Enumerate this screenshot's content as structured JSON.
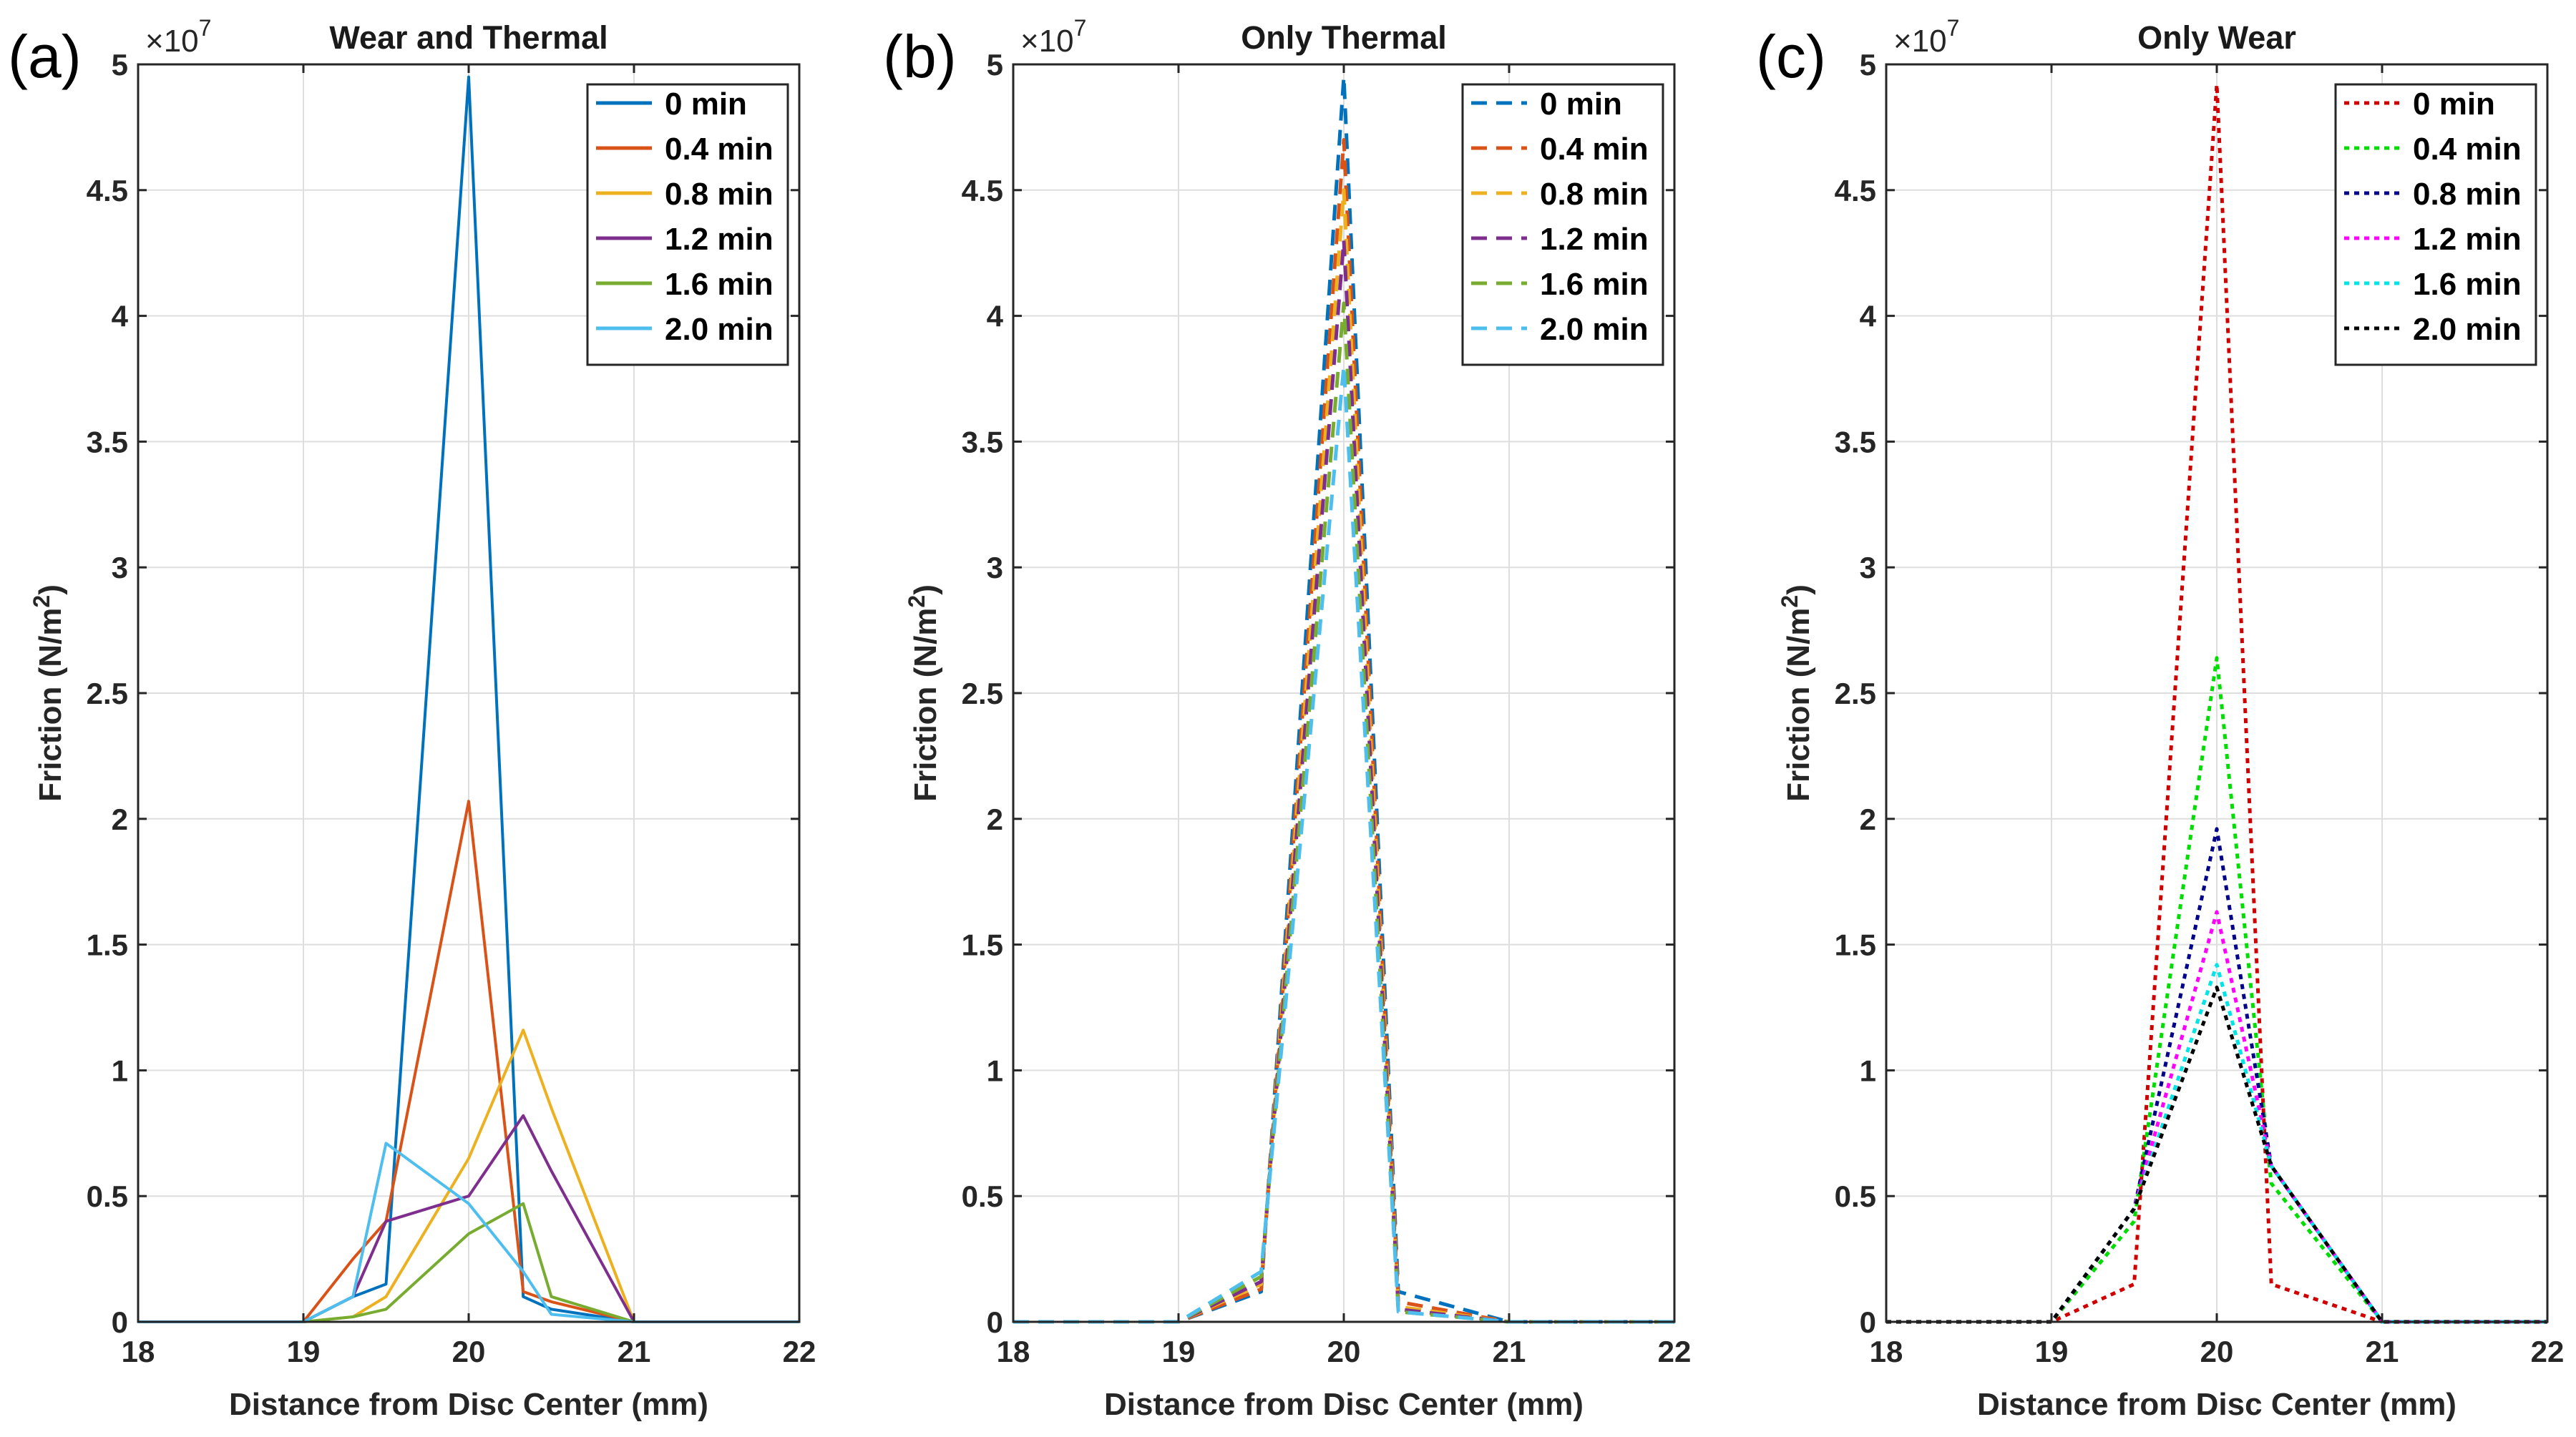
{
  "chart_data": [
    {
      "type": "line",
      "panel_label": "(a)",
      "title": "Wear and Thermal",
      "xlabel": "Distance from Disc Center (mm)",
      "ylabel_main": "Friction (N/m",
      "ylabel_sup": "2",
      "ylabel_end": ")",
      "multiplier_base": "×10",
      "multiplier_exp": "7",
      "xlim": [
        18,
        22
      ],
      "ylim": [
        0,
        5
      ],
      "xticks": [
        "18",
        "19",
        "20",
        "21",
        "22"
      ],
      "yticks": [
        "0",
        "0.5",
        "1",
        "1.5",
        "2",
        "2.5",
        "3",
        "3.5",
        "4",
        "4.5",
        "5"
      ],
      "legend_position": "top-right",
      "line_style": "solid",
      "series": [
        {
          "name": "0 min",
          "color": "#0072BD",
          "x": [
            18,
            19,
            19.3,
            19.5,
            20,
            20.33,
            20.5,
            21,
            22
          ],
          "y": [
            0,
            0,
            0.1,
            0.15,
            4.95,
            0.1,
            0.05,
            0,
            0
          ]
        },
        {
          "name": "0.4 min",
          "color": "#D95319",
          "x": [
            18,
            19,
            19.3,
            19.5,
            20,
            20.33,
            20.5,
            21,
            22
          ],
          "y": [
            0,
            0,
            0.25,
            0.4,
            2.07,
            0.12,
            0.08,
            0,
            0
          ]
        },
        {
          "name": "0.8 min",
          "color": "#EDB120",
          "x": [
            18,
            19,
            19.3,
            19.5,
            20,
            20.33,
            20.5,
            21,
            22
          ],
          "y": [
            0,
            0,
            0.02,
            0.1,
            0.65,
            1.16,
            0.85,
            0,
            0
          ]
        },
        {
          "name": "1.2 min",
          "color": "#7E2F8E",
          "x": [
            18,
            19,
            19.3,
            19.5,
            20,
            20.33,
            20.5,
            21,
            22
          ],
          "y": [
            0,
            0,
            0.1,
            0.4,
            0.5,
            0.82,
            0.6,
            0,
            0
          ]
        },
        {
          "name": "1.6 min",
          "color": "#77AC30",
          "x": [
            18,
            19,
            19.3,
            19.5,
            20,
            20.33,
            20.5,
            21,
            22
          ],
          "y": [
            0,
            0,
            0.02,
            0.05,
            0.35,
            0.47,
            0.1,
            0,
            0
          ]
        },
        {
          "name": "2.0 min",
          "color": "#4DBEEE",
          "x": [
            18,
            19,
            19.3,
            19.5,
            20,
            20.33,
            20.5,
            21,
            22
          ],
          "y": [
            0,
            0,
            0.1,
            0.71,
            0.47,
            0.2,
            0.03,
            0,
            0
          ]
        }
      ]
    },
    {
      "type": "line",
      "panel_label": "(b)",
      "title": "Only Thermal",
      "xlabel": "Distance from Disc Center (mm)",
      "ylabel_main": "Friction (N/m",
      "ylabel_sup": "2",
      "ylabel_end": ")",
      "multiplier_base": "×10",
      "multiplier_exp": "7",
      "xlim": [
        18,
        22
      ],
      "ylim": [
        0,
        5
      ],
      "xticks": [
        "18",
        "19",
        "20",
        "21",
        "22"
      ],
      "yticks": [
        "0",
        "0.5",
        "1",
        "1.5",
        "2",
        "2.5",
        "3",
        "3.5",
        "4",
        "4.5",
        "5"
      ],
      "legend_position": "top-right",
      "line_style": "dashed",
      "series": [
        {
          "name": "0 min",
          "color": "#0072BD",
          "x": [
            18,
            19,
            19.5,
            20,
            20.33,
            21,
            22
          ],
          "y": [
            0,
            0,
            0.12,
            4.95,
            0.12,
            0,
            0
          ]
        },
        {
          "name": "0.4 min",
          "color": "#D95319",
          "x": [
            18,
            19,
            19.5,
            20,
            20.33,
            21,
            22
          ],
          "y": [
            0,
            0,
            0.13,
            4.7,
            0.08,
            0,
            0
          ]
        },
        {
          "name": "0.8 min",
          "color": "#EDB120",
          "x": [
            18,
            19,
            19.5,
            20,
            20.33,
            21,
            22
          ],
          "y": [
            0,
            0,
            0.15,
            4.5,
            0.06,
            0,
            0
          ]
        },
        {
          "name": "1.2 min",
          "color": "#7E2F8E",
          "x": [
            18,
            19,
            19.5,
            20,
            20.33,
            21,
            22
          ],
          "y": [
            0,
            0,
            0.16,
            4.3,
            0.05,
            0,
            0
          ]
        },
        {
          "name": "1.6 min",
          "color": "#77AC30",
          "x": [
            18,
            19,
            19.5,
            20,
            20.33,
            21,
            22
          ],
          "y": [
            0,
            0,
            0.18,
            4.05,
            0.04,
            0,
            0
          ]
        },
        {
          "name": "2.0 min",
          "color": "#4DBEEE",
          "x": [
            18,
            19,
            19.5,
            20,
            20.33,
            21,
            22
          ],
          "y": [
            0,
            0,
            0.2,
            3.8,
            0.04,
            0,
            0
          ]
        }
      ]
    },
    {
      "type": "line",
      "panel_label": "(c)",
      "title": "Only Wear",
      "xlabel": "Distance from Disc Center (mm)",
      "ylabel_main": "Friction (N/m",
      "ylabel_sup": "2",
      "ylabel_end": ")",
      "multiplier_base": "×10",
      "multiplier_exp": "7",
      "xlim": [
        18,
        22
      ],
      "ylim": [
        0,
        5
      ],
      "xticks": [
        "18",
        "19",
        "20",
        "21",
        "22"
      ],
      "yticks": [
        "0",
        "0.5",
        "1",
        "1.5",
        "2",
        "2.5",
        "3",
        "3.5",
        "4",
        "4.5",
        "5"
      ],
      "legend_position": "top-right",
      "line_style": "dotted",
      "series": [
        {
          "name": "0 min",
          "color": "#D00000",
          "x": [
            18,
            19,
            19.5,
            20,
            20.33,
            21,
            22
          ],
          "y": [
            0,
            0,
            0.15,
            4.92,
            0.15,
            0,
            0
          ]
        },
        {
          "name": "0.4 min",
          "color": "#00DD00",
          "x": [
            18,
            19,
            19.5,
            20,
            20.33,
            21,
            22
          ],
          "y": [
            0,
            0,
            0.4,
            2.64,
            0.55,
            0,
            0
          ]
        },
        {
          "name": "0.8 min",
          "color": "#00008B",
          "x": [
            18,
            19,
            19.5,
            20,
            20.33,
            21,
            22
          ],
          "y": [
            0,
            0,
            0.45,
            1.96,
            0.62,
            0,
            0
          ]
        },
        {
          "name": "1.2 min",
          "color": "#FF00FF",
          "x": [
            18,
            19,
            19.5,
            20,
            20.33,
            21,
            22
          ],
          "y": [
            0,
            0,
            0.45,
            1.63,
            0.62,
            0,
            0
          ]
        },
        {
          "name": "1.6 min",
          "color": "#00E5E5",
          "x": [
            18,
            19,
            19.5,
            20,
            20.33,
            21,
            22
          ],
          "y": [
            0,
            0,
            0.45,
            1.42,
            0.62,
            0,
            0
          ]
        },
        {
          "name": "2.0 min",
          "color": "#000000",
          "x": [
            18,
            19,
            19.5,
            20,
            20.33,
            21,
            22
          ],
          "y": [
            0,
            0,
            0.45,
            1.33,
            0.62,
            0,
            0
          ]
        }
      ]
    }
  ]
}
